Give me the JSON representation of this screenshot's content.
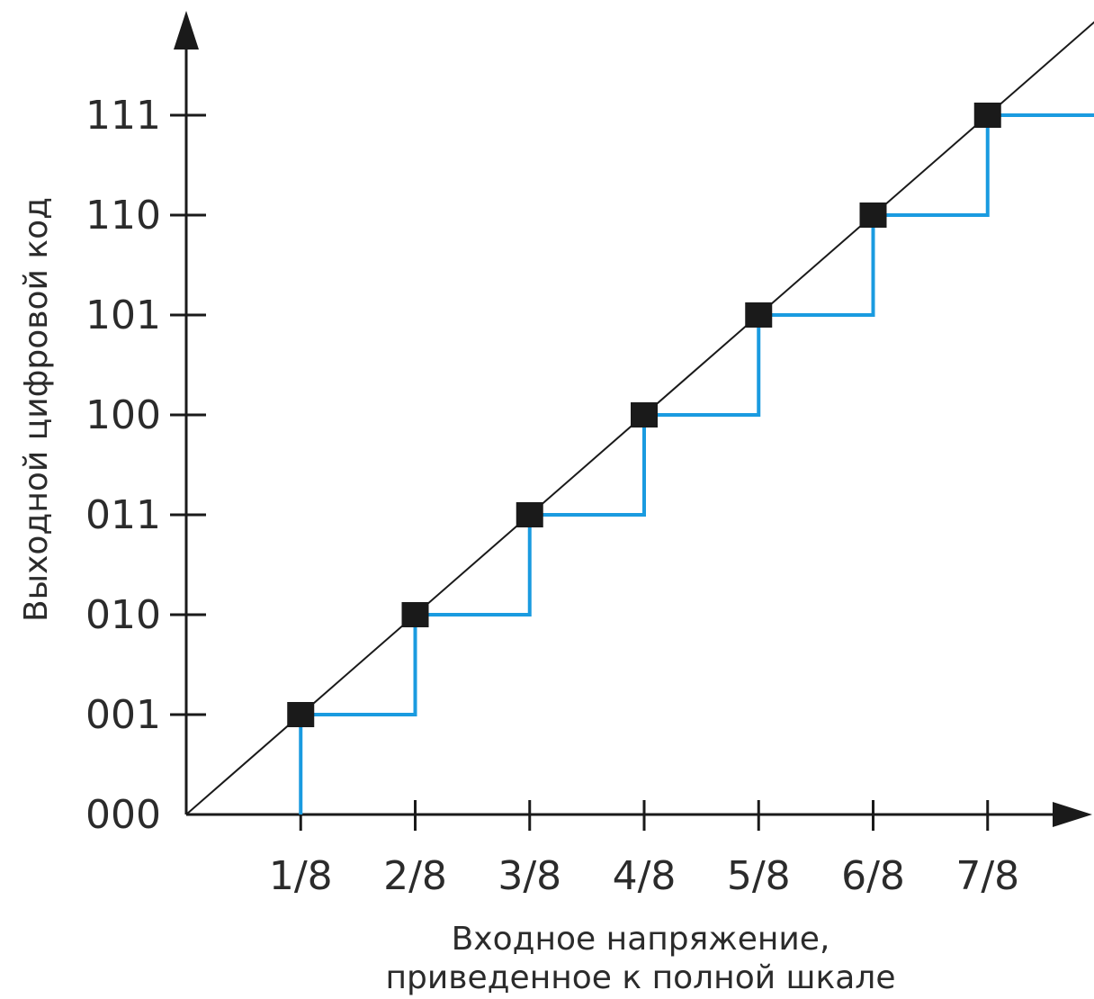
{
  "chart_data": {
    "type": "line",
    "title": "",
    "xlabel": [
      "Входное напряжение,",
      "приведенное к полной шкале"
    ],
    "ylabel": "Выходной цифровой код",
    "x_ticks": [
      "1/8",
      "2/8",
      "3/8",
      "4/8",
      "5/8",
      "6/8",
      "7/8"
    ],
    "y_ticks": [
      "000",
      "001",
      "010",
      "011",
      "100",
      "101",
      "110",
      "111"
    ],
    "xlim": [
      0,
      1
    ],
    "ylim": [
      0,
      7
    ],
    "series": [
      {
        "type": "line",
        "color": "#1a1a1a",
        "x": [
          0,
          1
        ],
        "y": [
          0,
          8
        ]
      },
      {
        "type": "step",
        "color": "#1a9be0",
        "x": [
          0.125,
          0.125,
          0.25,
          0.25,
          0.375,
          0.375,
          0.5,
          0.5,
          0.625,
          0.625,
          0.75,
          0.75,
          0.875,
          0.875,
          1.0
        ],
        "y": [
          0,
          1,
          1,
          2,
          2,
          3,
          3,
          4,
          4,
          5,
          5,
          6,
          6,
          7,
          7
        ]
      },
      {
        "type": "scatter",
        "marker": "square",
        "color": "#1a1a1a",
        "x": [
          0.125,
          0.25,
          0.375,
          0.5,
          0.625,
          0.75,
          0.875
        ],
        "y": [
          1,
          2,
          3,
          4,
          5,
          6,
          7
        ]
      }
    ],
    "grid": false,
    "legend": "none"
  }
}
